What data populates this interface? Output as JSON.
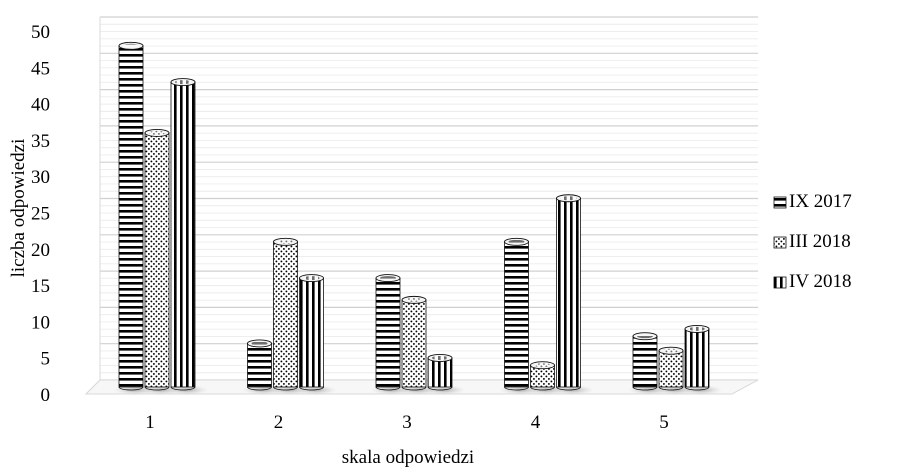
{
  "chart_data": {
    "type": "bar",
    "categories": [
      "1",
      "2",
      "3",
      "4",
      "5"
    ],
    "series": [
      {
        "name": "IX 2017",
        "values": [
          47,
          6,
          15,
          20,
          7
        ],
        "pattern": "horizontal-lines"
      },
      {
        "name": "III 2018",
        "values": [
          35,
          20,
          12,
          3,
          5
        ],
        "pattern": "dots"
      },
      {
        "name": "IV 2018",
        "values": [
          42,
          15,
          4,
          26,
          8
        ],
        "pattern": "vertical-lines"
      }
    ],
    "xlabel": "skala odpowiedzi",
    "ylabel": "liczba odpowiedzi",
    "ylim": [
      0,
      50
    ],
    "yticks": [
      "0",
      "5",
      "10",
      "15",
      "20",
      "25",
      "30",
      "35",
      "40",
      "45",
      "50"
    ],
    "grid": true,
    "legend_position": "right",
    "style": "3d-cylinder"
  }
}
